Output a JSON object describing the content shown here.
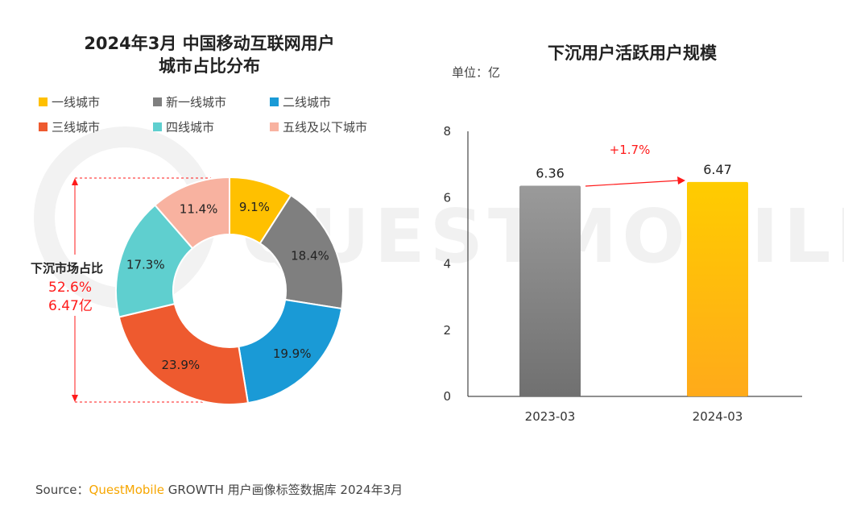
{
  "watermark": "QUESTMOBILE",
  "chart_data": [
    {
      "type": "pie",
      "title_line1": "2024年3月 中国移动互联网用户",
      "title_line2": "城市占比分布",
      "legend": "top",
      "slices": [
        {
          "label": "一线城市",
          "value": 9.1,
          "display": "9.1%",
          "color": "#ffc000"
        },
        {
          "label": "新一线城市",
          "value": 18.4,
          "display": "18.4%",
          "color": "#7f7f7f"
        },
        {
          "label": "二线城市",
          "value": 19.9,
          "display": "19.9%",
          "color": "#1a9ad6"
        },
        {
          "label": "三线城市",
          "value": 23.9,
          "display": "23.9%",
          "color": "#ee5a2f"
        },
        {
          "label": "四线城市",
          "value": 17.3,
          "display": "17.3%",
          "color": "#5fcfcf"
        },
        {
          "label": "五线及以下城市",
          "value": 11.4,
          "display": "11.4%",
          "color": "#f8b2a0"
        }
      ],
      "annotation": {
        "label": "下沉市场占比",
        "share": "52.6%",
        "users": "6.47亿"
      }
    },
    {
      "type": "bar",
      "title": "下沉用户活跃用户规模",
      "unit": "单位：亿",
      "categories": [
        "2023-03",
        "2024-03"
      ],
      "values": [
        6.36,
        6.47
      ],
      "value_labels": [
        "6.36",
        "6.47"
      ],
      "colors": [
        "#8c8c8c",
        "#ffc000"
      ],
      "ylim": [
        0,
        8
      ],
      "yticks": [
        0,
        2,
        4,
        6,
        8
      ],
      "growth_label": "+1.7%",
      "grid": false
    }
  ],
  "source": {
    "prefix": "Source：",
    "brand": "QuestMobile",
    "suffix": " GROWTH 用户画像标签数据库 2024年3月"
  }
}
